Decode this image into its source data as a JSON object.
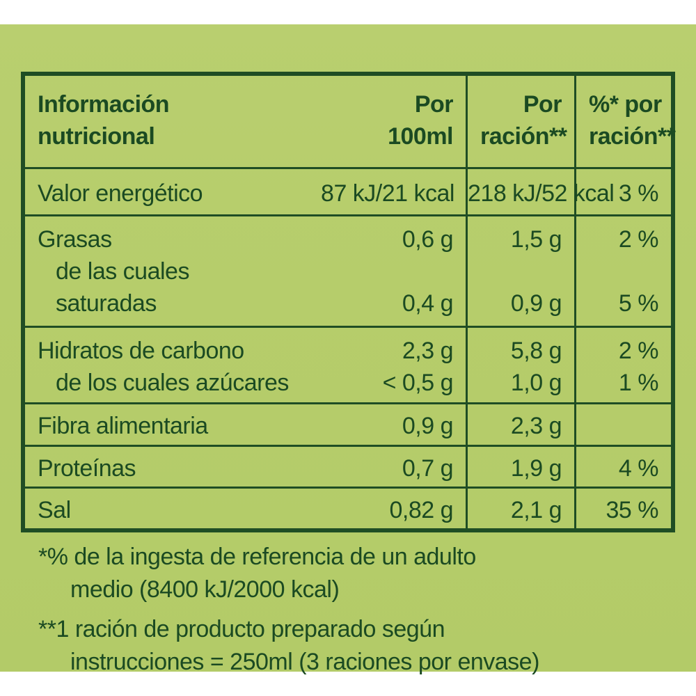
{
  "header": {
    "col1_line1": "Información",
    "col1_line2": "nutricional",
    "col2_line1": "Por",
    "col2_line2": "100ml",
    "col3_line1": "Por",
    "col3_line2": "ración**",
    "col4_line1": "%* por",
    "col4_line2": "ración**"
  },
  "rows": {
    "energy": {
      "name": "Valor energético",
      "per100": "87 kJ/21 kcal",
      "serving": "218 kJ/52 kcal",
      "pct": "3 %"
    },
    "fat": {
      "name": "Grasas",
      "per100": "0,6 g",
      "serving": "1,5 g",
      "pct": "2 %"
    },
    "fat_sub_line1": "de las cuales",
    "sat": {
      "name": "saturadas",
      "per100": "0,4 g",
      "serving": "0,9 g",
      "pct": "5 %"
    },
    "carbs": {
      "name": "Hidratos de carbono",
      "per100": "2,3 g",
      "serving": "5,8 g",
      "pct": "2 %"
    },
    "sugars": {
      "name": "de los cuales azúcares",
      "per100": "< 0,5 g",
      "serving": "1,0 g",
      "pct": "1 %"
    },
    "fibre": {
      "name": "Fibra alimentaria",
      "per100": "0,9 g",
      "serving": "2,3 g",
      "pct": ""
    },
    "protein": {
      "name": "Proteínas",
      "per100": "0,7 g",
      "serving": "1,9 g",
      "pct": "4 %"
    },
    "salt": {
      "name": "Sal",
      "per100": "0,82 g",
      "serving": "2,1 g",
      "pct": "35 %"
    }
  },
  "footnotes": {
    "note1_line1": "*% de la ingesta de referencia de un adulto",
    "note1_line2": "medio (8400 kJ/2000 kcal)",
    "note2_line1": "**1 ración de producto preparado según",
    "note2_line2": "instrucciones = 250ml (3 raciones por envase)"
  },
  "colors": {
    "panel_green": "#b6cd6b",
    "text_dark_green": "#1b4a22"
  }
}
